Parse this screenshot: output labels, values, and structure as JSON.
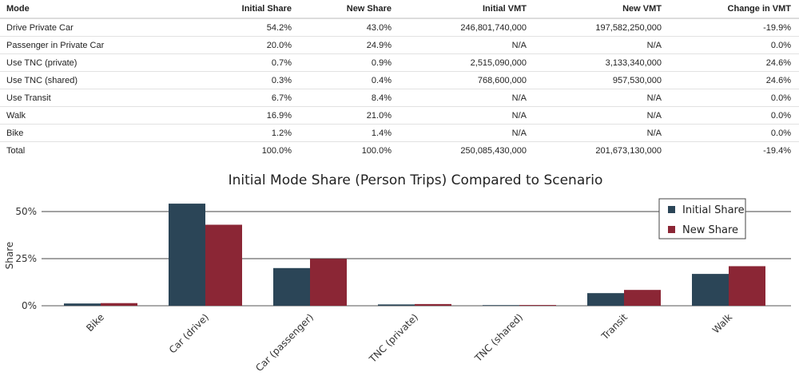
{
  "table": {
    "headers": [
      "Mode",
      "Initial Share",
      "New Share",
      "Initial VMT",
      "New VMT",
      "Change in VMT"
    ],
    "rows": [
      [
        "Drive Private Car",
        "54.2%",
        "43.0%",
        "246,801,740,000",
        "197,582,250,000",
        "-19.9%"
      ],
      [
        "Passenger in Private Car",
        "20.0%",
        "24.9%",
        "N/A",
        "N/A",
        "0.0%"
      ],
      [
        "Use TNC (private)",
        "0.7%",
        "0.9%",
        "2,515,090,000",
        "3,133,340,000",
        "24.6%"
      ],
      [
        "Use TNC (shared)",
        "0.3%",
        "0.4%",
        "768,600,000",
        "957,530,000",
        "24.6%"
      ],
      [
        "Use Transit",
        "6.7%",
        "8.4%",
        "N/A",
        "N/A",
        "0.0%"
      ],
      [
        "Walk",
        "16.9%",
        "21.0%",
        "N/A",
        "N/A",
        "0.0%"
      ],
      [
        "Bike",
        "1.2%",
        "1.4%",
        "N/A",
        "N/A",
        "0.0%"
      ],
      [
        "Total",
        "100.0%",
        "100.0%",
        "250,085,430,000",
        "201,673,130,000",
        "-19.4%"
      ]
    ]
  },
  "chart_data": {
    "type": "bar",
    "title": "Initial Mode Share (Person Trips) Compared to Scenario",
    "xlabel": "",
    "ylabel": "Share",
    "ylim": [
      0,
      0.6
    ],
    "yticks": [
      {
        "value": 0,
        "label": "0%"
      },
      {
        "value": 0.25,
        "label": "25%"
      },
      {
        "value": 0.5,
        "label": "50%"
      }
    ],
    "grid": true,
    "legend_position": "top-right",
    "categories": [
      "Bike",
      "Car (drive)",
      "Car (passenger)",
      "TNC (private)",
      "TNC (shared)",
      "Transit",
      "Walk"
    ],
    "series": [
      {
        "name": "Initial Share",
        "color": "#2b4557",
        "values": [
          0.012,
          0.542,
          0.2,
          0.007,
          0.003,
          0.067,
          0.169
        ]
      },
      {
        "name": "New Share",
        "color": "#8b2635",
        "values": [
          0.014,
          0.43,
          0.249,
          0.009,
          0.004,
          0.084,
          0.21
        ]
      }
    ]
  }
}
